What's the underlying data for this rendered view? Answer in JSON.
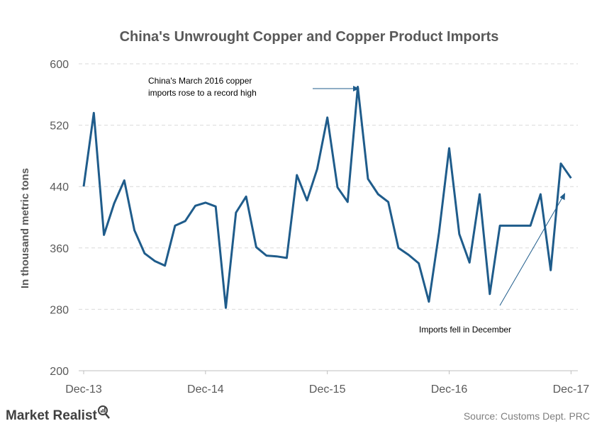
{
  "chart_data": {
    "type": "line",
    "title": "China's Unwrought Copper and Copper Product Imports",
    "ylabel": "In thousand metric tons",
    "xlabel": "",
    "ylim": [
      200,
      600
    ],
    "yticks": [
      200,
      280,
      360,
      440,
      520,
      600
    ],
    "xtick_labels": [
      "Dec-13",
      "Dec-14",
      "Dec-15",
      "Dec-16",
      "Dec-17"
    ],
    "grid": "horizontal dashed",
    "line_color": "#1f5c8b",
    "x": [
      "Dec-13",
      "Jan-14",
      "Feb-14",
      "Mar-14",
      "Apr-14",
      "May-14",
      "Jun-14",
      "Jul-14",
      "Aug-14",
      "Sep-14",
      "Oct-14",
      "Nov-14",
      "Dec-14",
      "Jan-15",
      "Feb-15",
      "Mar-15",
      "Apr-15",
      "May-15",
      "Jun-15",
      "Jul-15",
      "Aug-15",
      "Sep-15",
      "Oct-15",
      "Nov-15",
      "Dec-15",
      "Jan-16",
      "Feb-16",
      "Mar-16",
      "Apr-16",
      "May-16",
      "Jun-16",
      "Jul-16",
      "Aug-16",
      "Sep-16",
      "Oct-16",
      "Nov-16",
      "Dec-16",
      "Jan-17",
      "Feb-17",
      "Mar-17",
      "Apr-17",
      "May-17",
      "Jun-17",
      "Jul-17",
      "Aug-17",
      "Sep-17",
      "Oct-17",
      "Nov-17",
      "Dec-17"
    ],
    "values": [
      440,
      536,
      377,
      418,
      448,
      383,
      353,
      343,
      337,
      389,
      395,
      415,
      419,
      414,
      282,
      406,
      427,
      361,
      350,
      349,
      347,
      455,
      422,
      463,
      530,
      439,
      420,
      570,
      450,
      430,
      420,
      360,
      351,
      340,
      290,
      380,
      490,
      378,
      341,
      430,
      300,
      389,
      389,
      389,
      389,
      430,
      331,
      470,
      451
    ],
    "annotations": [
      {
        "text_lines": [
          "China's March 2016 copper",
          "imports rose to a record high"
        ],
        "points_to": "Mar-16"
      },
      {
        "text_lines": [
          "Imports fell in December"
        ],
        "points_to": "Dec-17"
      }
    ]
  },
  "footer": {
    "brand": "Market Realist",
    "source": "Source: Customs Dept. PRC"
  }
}
